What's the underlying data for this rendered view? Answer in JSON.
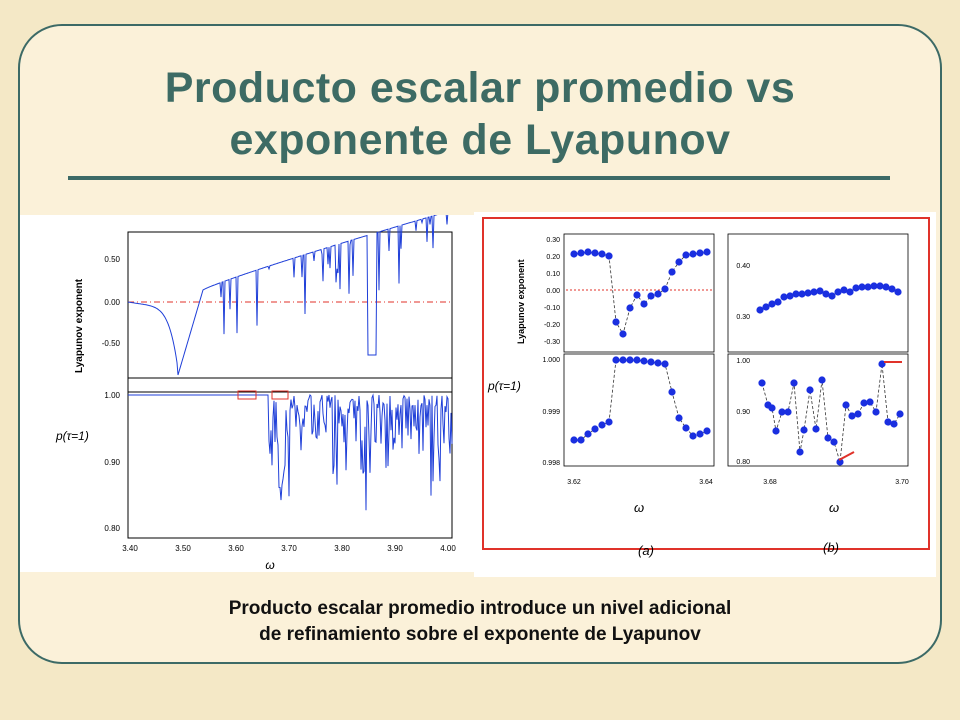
{
  "slide": {
    "title": "Producto escalar promedio vs exponente de Lyapunov",
    "caption_line1": "Producto escalar promedio introduce un nivel adicional",
    "caption_line2": "de refinamiento sobre el exponente de Lyapunov",
    "accent_color": "#3d6b64",
    "background_color": "#f4e8c6"
  },
  "left_figure": {
    "top_ylabel": "Lyapunov exponent",
    "top_yticks": [
      "0.50",
      "0.00",
      "-0.50"
    ],
    "bottom_ylabel": "p(τ=1)",
    "bottom_yticks": [
      "1.00",
      "0.90",
      "0.80"
    ],
    "xticks": [
      "3.40",
      "3.50",
      "3.60",
      "3.70",
      "3.80",
      "3.90",
      "4.00"
    ],
    "xlabel": "ω",
    "series_color": "#1f3fd8",
    "reference_color": "#e0322a"
  },
  "right_figure": {
    "a_top_ylabel": "Lyapunov exponent",
    "a_top_yticks": [
      "0.30",
      "0.20",
      "0.10",
      "0.00",
      "-0.10",
      "-0.20",
      "-0.30"
    ],
    "a_bottom_ylabel": "p(τ=1)",
    "a_bottom_yticks": [
      "1.000",
      "0.999",
      "0.998"
    ],
    "a_xticks": [
      "3.62",
      "3.64"
    ],
    "b_top_yticks": [
      "0.40",
      "0.30"
    ],
    "b_bottom_yticks": [
      "1.00",
      "0.90",
      "0.80"
    ],
    "b_xticks": [
      "3.68",
      "3.70"
    ],
    "xlabel": "ω",
    "panel_a_label": "(a)",
    "panel_b_label": "(b)",
    "marker_color": "#1a2fe0",
    "border_color": "#e0322a"
  }
}
